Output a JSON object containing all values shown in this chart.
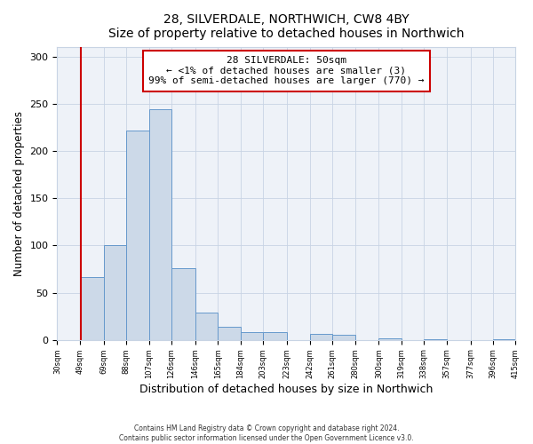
{
  "title": "28, SILVERDALE, NORTHWICH, CW8 4BY",
  "subtitle": "Size of property relative to detached houses in Northwich",
  "xlabel": "Distribution of detached houses by size in Northwich",
  "ylabel": "Number of detached properties",
  "bin_edges": [
    30,
    49,
    69,
    88,
    107,
    126,
    146,
    165,
    184,
    203,
    223,
    242,
    261,
    280,
    300,
    319,
    338,
    357,
    377,
    396,
    415
  ],
  "bin_heights": [
    0,
    67,
    100,
    222,
    244,
    76,
    29,
    14,
    8,
    8,
    0,
    6,
    5,
    0,
    2,
    0,
    1,
    0,
    0,
    1
  ],
  "bar_facecolor": "#ccd9e8",
  "bar_edgecolor": "#6699cc",
  "vline_x": 50,
  "vline_color": "#cc0000",
  "annotation_text": "28 SILVERDALE: 50sqm\n← <1% of detached houses are smaller (3)\n99% of semi-detached houses are larger (770) →",
  "annotation_box_color": "#cc0000",
  "ylim": [
    0,
    310
  ],
  "tick_labels": [
    "30sqm",
    "49sqm",
    "69sqm",
    "88sqm",
    "107sqm",
    "126sqm",
    "146sqm",
    "165sqm",
    "184sqm",
    "203sqm",
    "223sqm",
    "242sqm",
    "261sqm",
    "280sqm",
    "300sqm",
    "319sqm",
    "338sqm",
    "357sqm",
    "377sqm",
    "396sqm",
    "415sqm"
  ],
  "footer_line1": "Contains HM Land Registry data © Crown copyright and database right 2024.",
  "footer_line2": "Contains public sector information licensed under the Open Government Licence v3.0.",
  "background_color": "#ffffff",
  "plot_bg_color": "#eef2f8",
  "grid_color": "#c8d4e4"
}
